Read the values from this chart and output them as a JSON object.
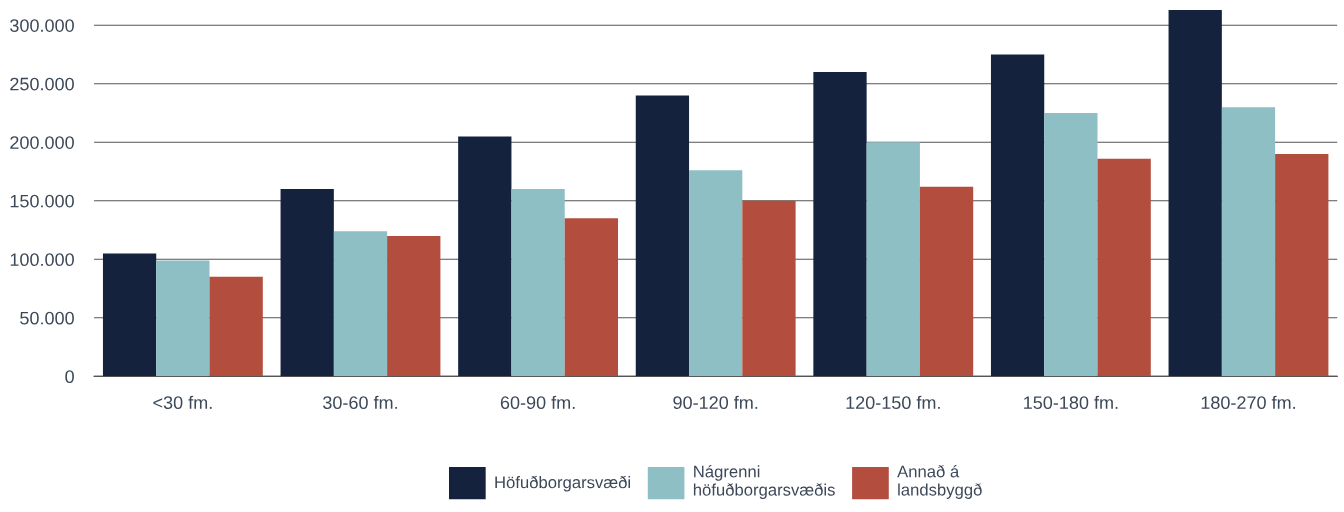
{
  "chart_data": {
    "type": "bar",
    "categories": [
      "<30 fm.",
      "30-60 fm.",
      "60-90 fm.",
      "90-120 fm.",
      "120-150 fm.",
      "150-180 fm.",
      "180-270 fm."
    ],
    "series": [
      {
        "name": "Höfuðborgarsvæði",
        "color": "#14223d",
        "values": [
          105000,
          160000,
          205000,
          240000,
          260000,
          275000,
          313000
        ]
      },
      {
        "name": "Nágrenni\nhöfuðborgarsvæðis",
        "color": "#8ebfc5",
        "values": [
          99000,
          124000,
          160000,
          176000,
          200000,
          225000,
          230000
        ]
      },
      {
        "name": "Annað á\nlandsbyggð",
        "color": "#b34d3e",
        "values": [
          85000,
          120000,
          135000,
          150000,
          162000,
          186000,
          190000
        ]
      }
    ],
    "ylim": [
      0,
      315000
    ],
    "yticks": [
      0,
      {
        "value": 50000,
        "label": "50.000"
      },
      {
        "value": 100000,
        "label": "100.000"
      },
      {
        "value": 150000,
        "label": "150.000"
      },
      {
        "value": 200000,
        "label": "200.000"
      },
      {
        "value": 250000,
        "label": "250.000"
      },
      {
        "value": 300000,
        "label": "300.000"
      }
    ],
    "grid": "y",
    "legend": "bottom"
  }
}
